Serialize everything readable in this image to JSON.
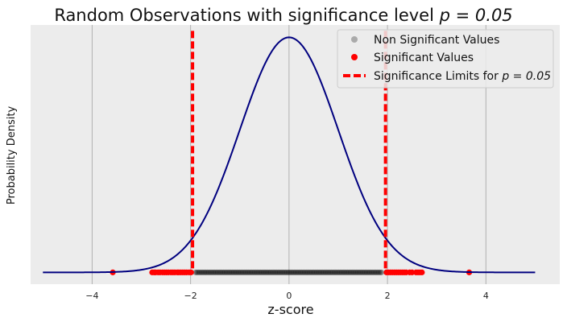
{
  "chart_data": {
    "type": "line",
    "title": "Random Observations with significance level",
    "title_math": "p = 0.05",
    "xlabel": "z-score",
    "ylabel": "Probability Density",
    "xlim": [
      -5.25,
      5.5
    ],
    "ylim": [
      -0.02,
      0.42
    ],
    "xticks": [
      -4,
      -2,
      0,
      2,
      4
    ],
    "xtick_labels": [
      "−4",
      "−2",
      "0",
      "2",
      "4"
    ],
    "grid": true,
    "legend_position": "top-right",
    "curve": {
      "type": "normal-pdf",
      "mean": 0,
      "sd": 1,
      "x_range": [
        -5,
        5
      ],
      "color": "#00007f"
    },
    "significance_limits": {
      "values": [
        -1.96,
        1.96
      ],
      "color": "#ff0000",
      "style": "dashed"
    },
    "legend": [
      {
        "label": "Non Significant Values",
        "marker": "circle",
        "color": "#aaaaaa"
      },
      {
        "label": "Significant Values",
        "marker": "circle",
        "color": "#ff0000"
      },
      {
        "label": "Significance Limits for",
        "label_math": "p = 0.05",
        "marker": "dashed-line",
        "color": "#ff0000"
      }
    ],
    "observations": {
      "y": 0,
      "non_significant_range": [
        -1.9,
        1.9
      ],
      "non_significant_color": "#000000",
      "significant_color": "#ff0000",
      "significant_values": [
        -3.58,
        -2.78,
        -2.74,
        -2.71,
        -2.66,
        -2.62,
        -2.57,
        -2.53,
        -2.49,
        -2.45,
        -2.4,
        -2.36,
        -2.32,
        -2.27,
        -2.24,
        -2.2,
        -2.16,
        -2.12,
        -2.08,
        -2.03,
        -1.99,
        1.98,
        2.02,
        2.06,
        2.1,
        2.14,
        2.18,
        2.22,
        2.26,
        2.3,
        2.34,
        2.38,
        2.45,
        2.5,
        2.58,
        2.62,
        2.66,
        2.7,
        3.66
      ]
    }
  }
}
